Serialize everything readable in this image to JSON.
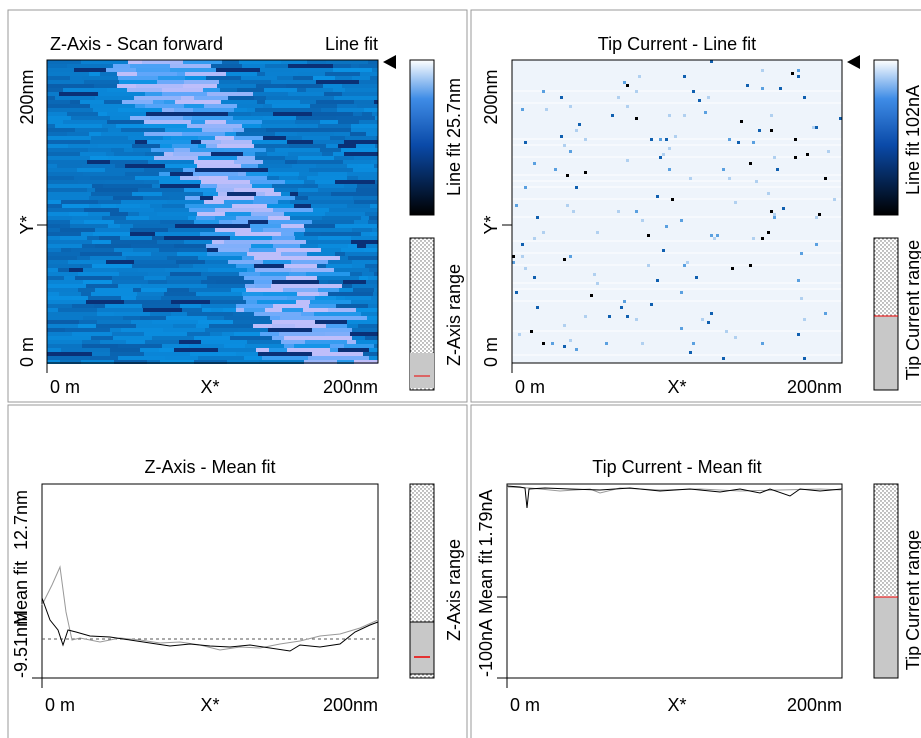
{
  "panels": [
    {
      "title": "Z-Axis - Scan forward",
      "title_right": "Line fit",
      "y_top": "200nm",
      "y_mid": "Y*",
      "y_bottom": "0 m",
      "x_left": "0 m",
      "x_mid": "X*",
      "x_right": "200nm",
      "colorbar_label": "Line fit 25.7nm",
      "range_label": "Z-Axis range"
    },
    {
      "title": "Tip Current - Line fit",
      "y_top": "200nm",
      "y_mid": "Y*",
      "y_bottom": "0 m",
      "x_left": "0 m",
      "x_mid": "X*",
      "x_right": "200nm",
      "colorbar_label": "Line fit 102nA",
      "range_label": "Tip Current range"
    },
    {
      "title": "Z-Axis - Mean fit",
      "y_top": "12.7nm",
      "y_mid": "Mean fit",
      "y_bottom": "-9.51nm",
      "x_left": "0 m",
      "x_mid": "X*",
      "x_right": "200nm",
      "range_label": "Z-Axis range"
    },
    {
      "title": "Tip Current - Mean fit",
      "y_top": "1.79nA",
      "y_mid": "Mean fit",
      "y_bottom": "-100nA",
      "x_left": "0 m",
      "x_mid": "X*",
      "x_right": "200nm",
      "range_label": "Tip Current range"
    }
  ]
}
